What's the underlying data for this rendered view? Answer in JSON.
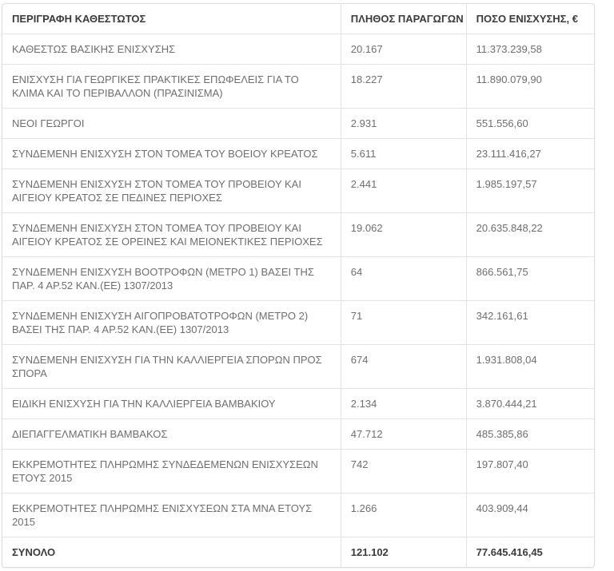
{
  "table": {
    "headers": [
      "ΠΕΡΙΓΡΑΦΗ ΚΑΘΕΣΤΩΤΟΣ",
      "ΠΛΗΘΟΣ ΠΑΡΑΓΩΓΩΝ",
      "ΠΟΣΟ ΕΝΙΣΧΥΣΗΣ, €"
    ],
    "rows": [
      {
        "description": "ΚΑΘΕΣΤΩΣ ΒΑΣΙΚΗΣ ΕΝΙΣΧΥΣΗΣ",
        "producers": "20.167",
        "amount": "11.373.239,58"
      },
      {
        "description": "ΕΝΙΣΧΥΣΗ ΓΙΑ ΓΕΩΡΓΙΚΕΣ ΠΡΑΚΤΙΚΕΣ ΕΠΩΦΕΛΕΙΣ ΓΙΑ ΤΟ ΚΛΙΜΑ ΚΑΙ ΤΟ ΠΕΡΙΒΑΛΛΟΝ (ΠΡΑΣΙΝΙΣΜΑ)",
        "producers": "18.227",
        "amount": "11.890.079,90"
      },
      {
        "description": "ΝΕΟΙ ΓΕΩΡΓΟΙ",
        "producers": "2.931",
        "amount": "551.556,60"
      },
      {
        "description": "ΣΥΝΔΕΜΕΝΗ ΕΝΙΣΧΥΣΗ ΣΤΟΝ ΤΟΜΕΑ ΤΟΥ ΒΟΕΙΟΥ ΚΡΕΑΤΟΣ",
        "producers": "5.611",
        "amount": "23.111.416,27"
      },
      {
        "description": "ΣΥΝΔΕΜΕΝΗ ΕΝΙΣΧΥΣΗ ΣΤΟΝ ΤΟΜΕΑ ΤΟΥ ΠΡΟΒΕΙΟΥ ΚΑΙ ΑΙΓΕΙΟΥ ΚΡΕΑΤΟΣ ΣΕ ΠΕΔΙΝΕΣ ΠΕΡΙΟΧΕΣ",
        "producers": "2.441",
        "amount": "1.985.197,57"
      },
      {
        "description": "ΣΥΝΔΕΜΕΝΗ ΕΝΙΣΧΥΣΗ ΣΤΟΝ ΤΟΜΕΑ ΤΟΥ ΠΡΟΒΕΙΟΥ ΚΑΙ ΑΙΓΕΙΟΥ ΚΡΕΑΤΟΣ ΣΕ ΟΡΕΙΝΕΣ ΚΑΙ ΜΕΙΟΝΕΚΤΙΚΕΣ ΠΕΡΙΟΧΕΣ",
        "producers": "19.062",
        "amount": "20.635.848,22"
      },
      {
        "description": "ΣΥΝΔΕΜΕΝΗ ΕΝΙΣΧΥΣΗ ΒΟΟΤΡΟΦΩΝ (ΜΕΤΡΟ 1) ΒΑΣΕΙ ΤΗΣ ΠΑΡ. 4 ΑΡ.52 ΚΑΝ.(ΕΕ) 1307/2013",
        "producers": "64",
        "amount": "866.561,75"
      },
      {
        "description": "ΣΥΝΔΕΜΕΝΗ ΕΝΙΣΧΥΣΗ ΑΙΓΟΠΡΟΒΑΤΟΤΡΟΦΩΝ (ΜΕΤΡΟ 2) ΒΑΣΕΙ ΤΗΣ ΠΑΡ. 4 ΑΡ.52 ΚΑΝ.(ΕΕ) 1307/2013",
        "producers": "71",
        "amount": "342.161,61"
      },
      {
        "description": "ΣΥΝΔΕΜΕΝΗ ΕΝΙΣΧΥΣΗ ΓΙΑ ΤΗΝ ΚΑΛΛΙΕΡΓΕΙΑ ΣΠΟΡΩΝ ΠΡΟΣ ΣΠΟΡΑ",
        "producers": "674",
        "amount": "1.931.808,04"
      },
      {
        "description": "ΕΙΔΙΚΗ ΕΝΙΣΧΥΣΗ ΓΙΑ ΤΗΝ ΚΑΛΛΙΕΡΓΕΙΑ ΒΑΜΒΑΚΙΟΥ",
        "producers": "2.134",
        "amount": "3.870.444,21"
      },
      {
        "description": "ΔΙΕΠΑΓΓΕΛΜΑΤΙΚΗ ΒΑΜΒΑΚΟΣ",
        "producers": "47.712",
        "amount": "485.385,86"
      },
      {
        "description": "ΕΚΚΡΕΜΟΤΗΤΕΣ ΠΛΗΡΩΜΗΣ ΣΥΝΔΕΔΕΜΕΝΩΝ ΕΝΙΣΧΥΣΕΩΝ ΕΤΟΥΣ 2015",
        "producers": "742",
        "amount": "197.807,40"
      },
      {
        "description": "ΕΚΚΡΕΜΟΤΗΤΕΣ ΠΛΗΡΩΜΗΣ ΕΝΙΣΧΥΣΕΩΝ ΣΤΑ ΜΝΑ ΕΤΟΥΣ 2015",
        "producers": "1.266",
        "amount": "403.909,44"
      }
    ],
    "total": {
      "label": "ΣΥΝΟΛΟ",
      "producers": "121.102",
      "amount": "77.645.416,45"
    }
  },
  "colors": {
    "border": "#e3e3e3",
    "outer_border": "#dcdcdc",
    "header_text": "#3b3b3b",
    "body_text": "#6e6e6e",
    "total_text": "#3b3b3b",
    "background": "#ffffff"
  }
}
